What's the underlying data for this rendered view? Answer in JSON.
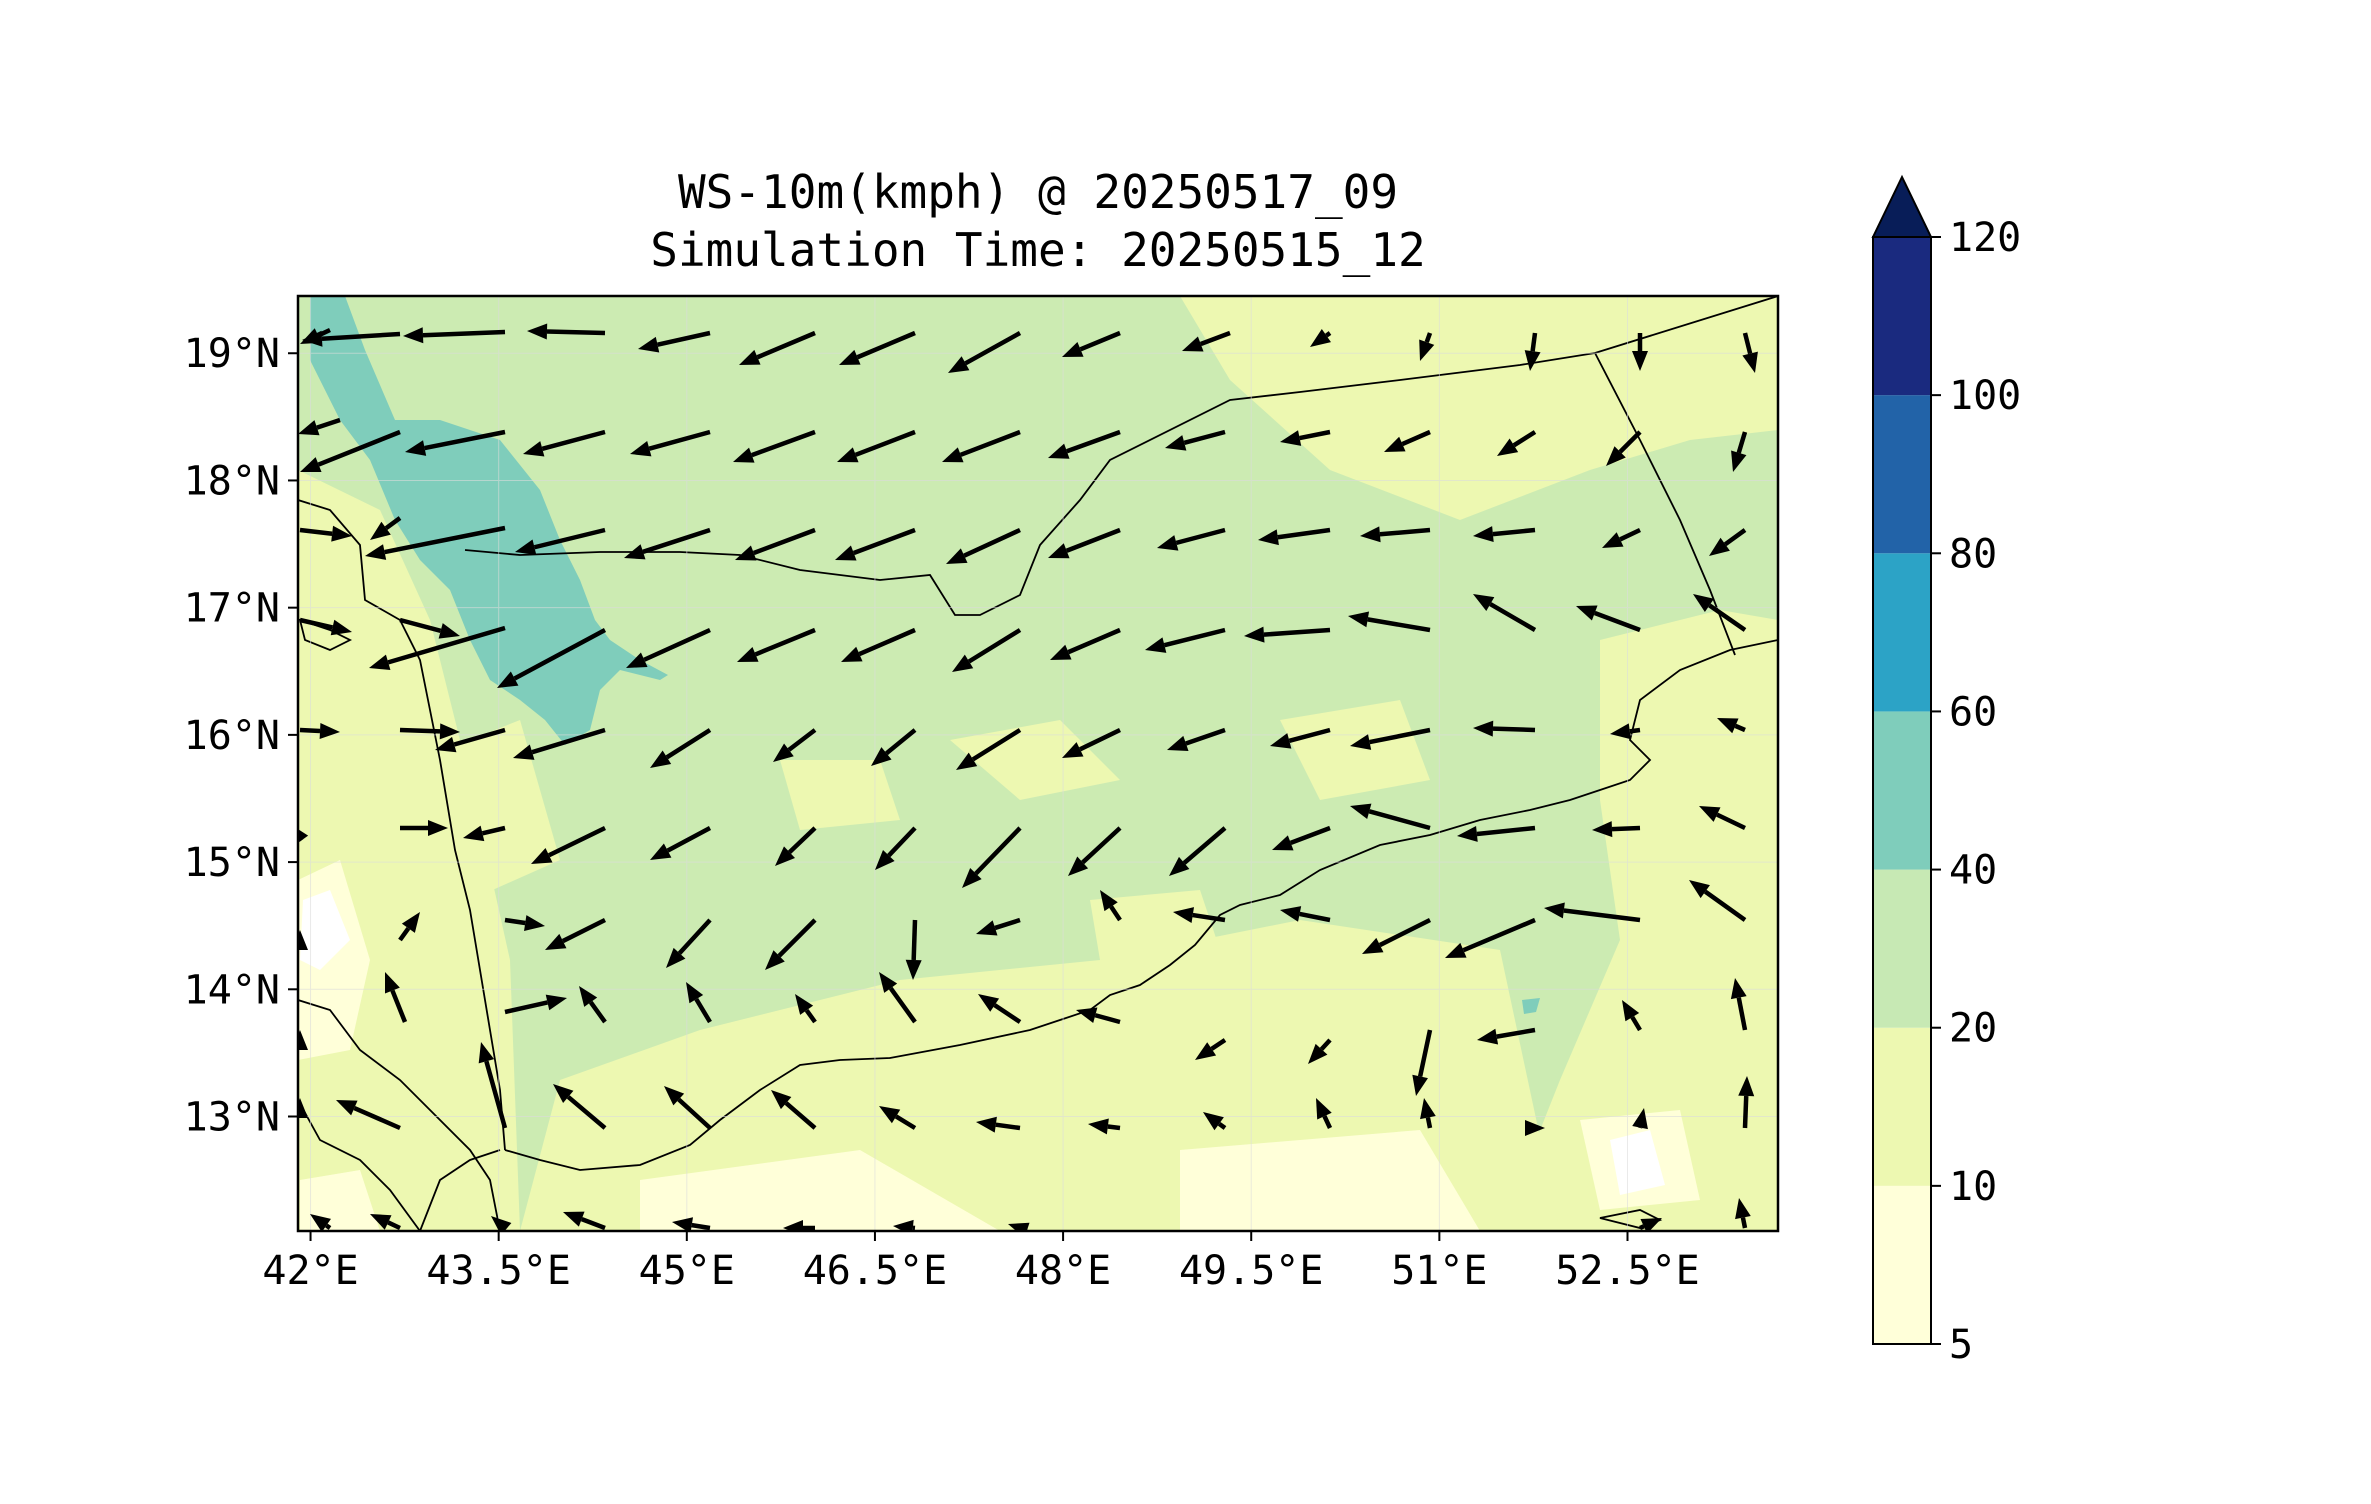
{
  "title": {
    "line1": "WS-10m(kmph) @ 20250517_09",
    "line2": "Simulation Time: 20250515_12"
  },
  "map": {
    "lon_range": [
      41.9,
      53.7
    ],
    "lat_range": [
      12.1,
      19.45
    ],
    "x_ticks": [
      {
        "value": 42.0,
        "label": "42°E"
      },
      {
        "value": 43.5,
        "label": "43.5°E"
      },
      {
        "value": 45.0,
        "label": "45°E"
      },
      {
        "value": 46.5,
        "label": "46.5°E"
      },
      {
        "value": 48.0,
        "label": "48°E"
      },
      {
        "value": 49.5,
        "label": "49.5°E"
      },
      {
        "value": 51.0,
        "label": "51°E"
      },
      {
        "value": 52.5,
        "label": "52.5°E"
      }
    ],
    "y_ticks": [
      {
        "value": 19,
        "label": "19°N"
      },
      {
        "value": 18,
        "label": "18°N"
      },
      {
        "value": 17,
        "label": "17°N"
      },
      {
        "value": 16,
        "label": "16°N"
      },
      {
        "value": 15,
        "label": "15°N"
      },
      {
        "value": 14,
        "label": "14°N"
      },
      {
        "value": 13,
        "label": "13°N"
      }
    ]
  },
  "colorbar": {
    "levels": [
      "5",
      "10",
      "20",
      "40",
      "60",
      "80",
      "100",
      "120"
    ],
    "colors": [
      "#ffffd9",
      "#edf8b1",
      "#c7e9b4",
      "#7fcdbb",
      "#2ca3c6",
      "#2263a8",
      "#1a2a7f"
    ],
    "extend_color": "#081d58"
  },
  "colors": {
    "land_base": "#ccebb2",
    "sea": "#7fcdbb",
    "light": "#edf8b1",
    "lightest": "#ffffd9"
  }
}
